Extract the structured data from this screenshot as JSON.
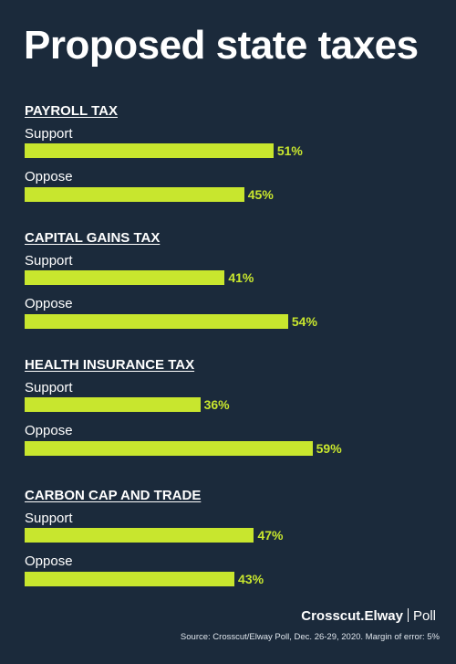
{
  "title": "Proposed state taxes",
  "logo": {
    "brand_bold": "Crosscut.Elway",
    "brand_light": "Poll"
  },
  "source": "Source: Crosscut/Elway Poll, Dec. 26-29, 2020. Margin of error: 5%",
  "colors": {
    "background": "#1b2a3b",
    "bar": "#c8e62e",
    "value_text": "#c8e62e",
    "text": "#ffffff"
  },
  "chart_data": {
    "type": "bar",
    "orientation": "horizontal",
    "value_suffix": "%",
    "xlim": [
      0,
      100
    ],
    "grid": false,
    "groups": [
      {
        "name": "PAYROLL TAX",
        "rows": [
          {
            "label": "Support",
            "value": 51
          },
          {
            "label": "Oppose",
            "value": 45
          }
        ]
      },
      {
        "name": "CAPITAL GAINS TAX",
        "rows": [
          {
            "label": "Support",
            "value": 41
          },
          {
            "label": "Oppose",
            "value": 54
          }
        ]
      },
      {
        "name": "HEALTH INSURANCE TAX",
        "rows": [
          {
            "label": "Support",
            "value": 36
          },
          {
            "label": "Oppose",
            "value": 59
          }
        ]
      },
      {
        "name": "CARBON CAP AND TRADE",
        "rows": [
          {
            "label": "Support",
            "value": 47
          },
          {
            "label": "Oppose",
            "value": 43
          }
        ]
      }
    ]
  }
}
